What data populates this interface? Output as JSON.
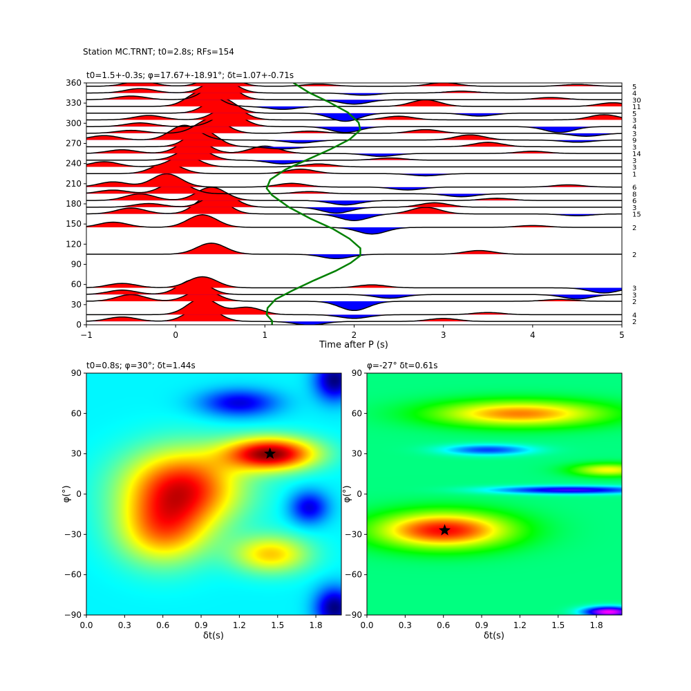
{
  "figure_title": "Station MC.TRNT; t0=2.8s; RFs=154",
  "chart_data": [
    {
      "type": "line",
      "title": "t0=1.5+-0.3s; φ=17.67+-18.91°; δt=1.07+-0.71s",
      "xlabel": "Time after P (s)",
      "ylabel": "",
      "xlim": [
        -1,
        5
      ],
      "ylim": [
        0,
        360
      ],
      "x_ticks": [
        -1,
        0,
        1,
        2,
        3,
        4,
        5
      ],
      "y_ticks": [
        0,
        30,
        60,
        90,
        120,
        150,
        180,
        210,
        240,
        270,
        300,
        330,
        360
      ],
      "positive_fill_color": "#ff0000",
      "negative_fill_color": "#0000ff",
      "trace_color": "#000000",
      "curve_color": "#008000",
      "traces": [
        {
          "baz": 5,
          "count": "2",
          "peaks": [
            [
              0.3,
              42
            ],
            [
              -0.6,
              12
            ],
            [
              1.5,
              -10
            ],
            [
              3.0,
              8
            ]
          ]
        },
        {
          "baz": 15,
          "count": "4",
          "peaks": [
            [
              0.3,
              45
            ],
            [
              0.8,
              20
            ],
            [
              2.0,
              -10
            ],
            [
              3.5,
              6
            ]
          ]
        },
        {
          "baz": 35,
          "count": "2",
          "peaks": [
            [
              0.3,
              32
            ],
            [
              -0.5,
              18
            ],
            [
              2.0,
              -25
            ],
            [
              4.3,
              5
            ]
          ]
        },
        {
          "baz": 45,
          "count": "3",
          "peaks": [
            [
              0.2,
              40
            ],
            [
              -0.6,
              12
            ],
            [
              2.4,
              -10
            ],
            [
              4.5,
              -12
            ]
          ]
        },
        {
          "baz": 55,
          "count": "3",
          "peaks": [
            [
              0.3,
              30
            ],
            [
              -0.6,
              12
            ],
            [
              2.2,
              8
            ],
            [
              4.8,
              -14
            ]
          ]
        },
        {
          "baz": 105,
          "count": "2",
          "peaks": [
            [
              0.4,
              30
            ],
            [
              1.8,
              -12
            ],
            [
              3.4,
              10
            ]
          ]
        },
        {
          "baz": 145,
          "count": "2",
          "peaks": [
            [
              0.3,
              34
            ],
            [
              -0.7,
              14
            ],
            [
              2.2,
              -18
            ],
            [
              4.0,
              5
            ]
          ]
        },
        {
          "baz": 165,
          "count": "15",
          "peaks": [
            [
              0.4,
              52
            ],
            [
              -0.5,
              16
            ],
            [
              2.0,
              -18
            ],
            [
              2.8,
              18
            ],
            [
              4.5,
              -5
            ]
          ]
        },
        {
          "baz": 175,
          "count": "3",
          "peaks": [
            [
              0.5,
              40
            ],
            [
              -0.3,
              10
            ],
            [
              1.8,
              -16
            ],
            [
              2.9,
              12
            ]
          ]
        },
        {
          "baz": 185,
          "count": "6",
          "peaks": [
            [
              0.4,
              36
            ],
            [
              -0.4,
              18
            ],
            [
              1.9,
              -12
            ],
            [
              3.6,
              6
            ]
          ]
        },
        {
          "baz": 195,
          "count": "8",
          "peaks": [
            [
              0.0,
              32
            ],
            [
              -0.7,
              10
            ],
            [
              1.5,
              6
            ],
            [
              3.2,
              -8
            ]
          ]
        },
        {
          "baz": 205,
          "count": "6",
          "peaks": [
            [
              -0.1,
              36
            ],
            [
              -0.7,
              14
            ],
            [
              1.3,
              10
            ],
            [
              2.6,
              -8
            ],
            [
              4.4,
              6
            ]
          ]
        },
        {
          "baz": 225,
          "count": "1",
          "peaks": [
            [
              -0.1,
              28
            ],
            [
              1.4,
              12
            ],
            [
              2.8,
              -6
            ]
          ]
        },
        {
          "baz": 235,
          "count": "3",
          "peaks": [
            [
              0.1,
              30
            ],
            [
              -0.8,
              14
            ],
            [
              1.6,
              8
            ]
          ]
        },
        {
          "baz": 245,
          "count": "3",
          "peaks": [
            [
              0.2,
              36
            ],
            [
              1.2,
              -10
            ],
            [
              2.4,
              6
            ]
          ]
        },
        {
          "baz": 255,
          "count": "14",
          "peaks": [
            [
              0.2,
              38
            ],
            [
              -0.6,
              10
            ],
            [
              1.0,
              20
            ],
            [
              2.3,
              -8
            ],
            [
              4.0,
              6
            ]
          ]
        },
        {
          "baz": 265,
          "count": "3",
          "peaks": [
            [
              0.3,
              46
            ],
            [
              1.2,
              -6
            ],
            [
              3.5,
              12
            ]
          ]
        },
        {
          "baz": 275,
          "count": "9",
          "peaks": [
            [
              0.1,
              40
            ],
            [
              -0.8,
              12
            ],
            [
              1.4,
              -8
            ],
            [
              3.3,
              14
            ],
            [
              4.5,
              -6
            ]
          ]
        },
        {
          "baz": 285,
          "count": "3",
          "peaks": [
            [
              0.4,
              40
            ],
            [
              -0.5,
              8
            ],
            [
              1.5,
              6
            ],
            [
              2.8,
              10
            ],
            [
              4.6,
              -8
            ]
          ]
        },
        {
          "baz": 295,
          "count": "4",
          "peaks": [
            [
              0.6,
              36
            ],
            [
              -0.4,
              10
            ],
            [
              1.9,
              -16
            ],
            [
              4.3,
              -16
            ]
          ]
        },
        {
          "baz": 305,
          "count": "3",
          "peaks": [
            [
              0.6,
              36
            ],
            [
              -0.3,
              12
            ],
            [
              2.5,
              10
            ],
            [
              4.8,
              14
            ]
          ]
        },
        {
          "baz": 315,
          "count": "5",
          "peaks": [
            [
              0.5,
              42
            ],
            [
              1.9,
              -22
            ],
            [
              3.4,
              -8
            ]
          ]
        },
        {
          "baz": 325,
          "count": "11",
          "peaks": [
            [
              0.3,
              42
            ],
            [
              1.2,
              -8
            ],
            [
              2.8,
              18
            ],
            [
              4.9,
              10
            ]
          ]
        },
        {
          "baz": 335,
          "count": "30",
          "peaks": [
            [
              0.5,
              48
            ],
            [
              -0.5,
              10
            ],
            [
              2.0,
              -12
            ],
            [
              4.2,
              6
            ]
          ]
        },
        {
          "baz": 345,
          "count": "4",
          "peaks": [
            [
              0.5,
              40
            ],
            [
              -0.4,
              12
            ],
            [
              2.1,
              -6
            ],
            [
              3.2,
              5
            ]
          ]
        },
        {
          "baz": 355,
          "count": "5",
          "peaks": [
            [
              0.5,
              36
            ],
            [
              -0.4,
              14
            ],
            [
              1.6,
              6
            ],
            [
              3.0,
              10
            ],
            [
              4.5,
              5
            ]
          ]
        }
      ],
      "baz_delay_curve": {
        "color": "#008000",
        "points": [
          [
            1.08,
            0
          ],
          [
            1.08,
            6
          ],
          [
            1.02,
            15
          ],
          [
            1.03,
            25
          ],
          [
            1.12,
            38
          ],
          [
            1.31,
            51
          ],
          [
            1.55,
            66
          ],
          [
            1.79,
            80
          ],
          [
            1.96,
            92
          ],
          [
            2.07,
            103
          ],
          [
            2.07,
            114
          ],
          [
            1.95,
            128
          ],
          [
            1.76,
            143
          ],
          [
            1.51,
            158
          ],
          [
            1.27,
            175
          ],
          [
            1.08,
            193
          ],
          [
            1.02,
            203
          ],
          [
            1.06,
            216
          ],
          [
            1.23,
            231
          ],
          [
            1.48,
            246
          ],
          [
            1.73,
            261
          ],
          [
            1.95,
            276
          ],
          [
            2.07,
            290
          ],
          [
            2.05,
            301
          ],
          [
            1.93,
            316
          ],
          [
            1.71,
            332
          ],
          [
            1.49,
            346
          ],
          [
            1.32,
            360
          ]
        ]
      }
    },
    {
      "type": "heatmap",
      "title": "t0=0.8s; φ=30°; δt=1.44s",
      "xlabel": "δt(s)",
      "ylabel": "φ(°)",
      "xlim": [
        0,
        2
      ],
      "ylim": [
        -90,
        90
      ],
      "x_ticks": [
        "0.0",
        "0.3",
        "0.6",
        "0.9",
        "1.2",
        "1.5",
        "1.8"
      ],
      "y_ticks": [
        "90",
        "60",
        "30",
        "0",
        "−30",
        "−60",
        "−90"
      ],
      "colormap": "jet",
      "best_fit": {
        "dt": 1.44,
        "phi": 30
      },
      "features": [
        {
          "dt": 1.45,
          "phi": 30,
          "amp": 1.0,
          "sigma_dt": 0.35,
          "sigma_phi": 12
        },
        {
          "dt": 0.75,
          "phi": 5,
          "amp": 0.82,
          "sigma_dt": 0.45,
          "sigma_phi": 28
        },
        {
          "dt": 0.6,
          "phi": -28,
          "amp": 0.55,
          "sigma_dt": 0.35,
          "sigma_phi": 25
        },
        {
          "dt": 1.45,
          "phi": -45,
          "amp": 0.5,
          "sigma_dt": 0.3,
          "sigma_phi": 14
        },
        {
          "dt": 1.2,
          "phi": 68,
          "amp": -0.45,
          "sigma_dt": 0.3,
          "sigma_phi": 10
        },
        {
          "dt": 1.75,
          "phi": -10,
          "amp": -0.45,
          "sigma_dt": 0.15,
          "sigma_phi": 12
        },
        {
          "dt": 1.95,
          "phi": 85,
          "amp": -0.6,
          "sigma_dt": 0.15,
          "sigma_phi": 15
        },
        {
          "dt": 1.95,
          "phi": -85,
          "amp": -0.6,
          "sigma_dt": 0.15,
          "sigma_phi": 15
        }
      ]
    },
    {
      "type": "heatmap",
      "title": "φ=-27° δt=0.61s",
      "xlabel": "δt(s)",
      "ylabel": "φ(°)",
      "xlim": [
        0,
        2
      ],
      "ylim": [
        -90,
        90
      ],
      "x_ticks": [
        "0.0",
        "0.3",
        "0.6",
        "0.9",
        "1.2",
        "1.5",
        "1.8"
      ],
      "y_ticks": [
        "90",
        "60",
        "30",
        "0",
        "−30",
        "−60",
        "−90"
      ],
      "colormap": "hsv",
      "best_fit": {
        "dt": 0.61,
        "phi": -27
      },
      "features": [
        {
          "dt": 0.6,
          "phi": -27,
          "amp": 1.0,
          "sigma_dt": 0.55,
          "sigma_phi": 14
        },
        {
          "dt": 1.2,
          "phi": 60,
          "amp": 0.8,
          "sigma_dt": 0.7,
          "sigma_phi": 10
        },
        {
          "dt": 1.9,
          "phi": 18,
          "amp": 0.6,
          "sigma_dt": 0.3,
          "sigma_phi": 5
        },
        {
          "dt": 0.95,
          "phi": 33,
          "amp": -0.5,
          "sigma_dt": 0.35,
          "sigma_phi": 4
        },
        {
          "dt": 1.6,
          "phi": 3,
          "amp": -0.7,
          "sigma_dt": 0.6,
          "sigma_phi": 3
        },
        {
          "dt": 1.9,
          "phi": -88,
          "amp": -1.0,
          "sigma_dt": 0.2,
          "sigma_phi": 4
        }
      ]
    }
  ]
}
